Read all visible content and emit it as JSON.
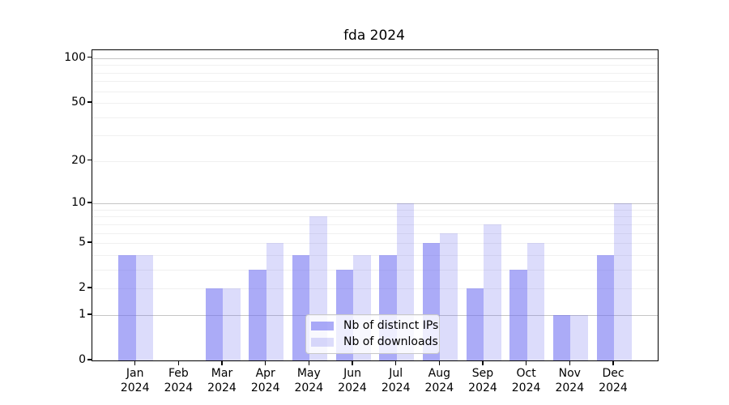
{
  "chart_data": {
    "type": "bar",
    "title": "fda 2024",
    "x": {
      "months": [
        "Jan",
        "Feb",
        "Mar",
        "Apr",
        "May",
        "Jun",
        "Jul",
        "Aug",
        "Sep",
        "Oct",
        "Nov",
        "Dec"
      ],
      "year": "2024"
    },
    "categories": [
      "Jan 2024",
      "Feb 2024",
      "Mar 2024",
      "Apr 2024",
      "May 2024",
      "Jun 2024",
      "Jul 2024",
      "Aug 2024",
      "Sep 2024",
      "Oct 2024",
      "Nov 2024",
      "Dec 2024"
    ],
    "series": [
      {
        "name": "Nb of distinct IPs",
        "color": "rgba(105,105,240,0.56)",
        "color_solid_hex": "#aaaaf3",
        "values": [
          4,
          0,
          2,
          3,
          4,
          3,
          4,
          5,
          2,
          3,
          1,
          4
        ]
      },
      {
        "name": "Nb of downloads",
        "color": "rgba(105,105,240,0.235)",
        "color_solid_hex": "#dcdcfa",
        "values": [
          4,
          0,
          2,
          5,
          8,
          4,
          10,
          6,
          7,
          5,
          1,
          10
        ]
      }
    ],
    "yscale": "log1p",
    "ylim": [
      0,
      113
    ],
    "yticks": [
      0,
      1,
      2,
      5,
      10,
      20,
      50,
      100
    ],
    "grid": {
      "major_values": [
        1,
        10,
        100
      ],
      "minor_values": [
        2,
        3,
        4,
        5,
        6,
        7,
        8,
        9,
        20,
        30,
        40,
        50,
        60,
        70,
        80,
        90
      ],
      "major_color": "#c6c6c6",
      "minor_color": "#f0f0f0"
    },
    "legend": {
      "position": "lower center"
    },
    "axis_color": "#000000",
    "background_color": "#ffffff"
  }
}
